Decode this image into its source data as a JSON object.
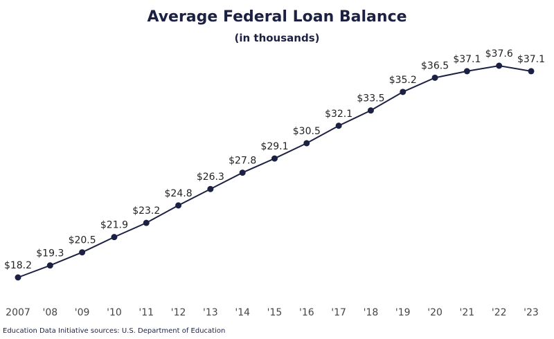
{
  "chart_data": {
    "type": "line",
    "title": "Average Federal Loan Balance",
    "subtitle": "(in thousands)",
    "categories": [
      "2007",
      "'08",
      "'09",
      "'10",
      "'11",
      "'12",
      "'13",
      "'14",
      "'15",
      "'16",
      "'17",
      "'18",
      "'19",
      "'20",
      "'21",
      "'22",
      "'23"
    ],
    "values": [
      18.2,
      19.3,
      20.5,
      21.9,
      23.2,
      24.8,
      26.3,
      27.8,
      29.1,
      30.5,
      32.1,
      33.5,
      35.2,
      36.5,
      37.1,
      37.6,
      37.1
    ],
    "data_labels": [
      "$18.2",
      "$19.3",
      "$20.5",
      "$21.9",
      "$23.2",
      "$24.8",
      "$26.3",
      "$27.8",
      "$29.1",
      "$30.5",
      "$32.1",
      "$33.5",
      "$35.2",
      "$36.5",
      "$37.1",
      "$37.6",
      "$37.1"
    ],
    "xlabel": "",
    "ylabel": "",
    "grid": false,
    "legend": "none",
    "line_color": "#1c2143"
  },
  "source": "Education Data Initiative sources: U.S. Department of Education"
}
